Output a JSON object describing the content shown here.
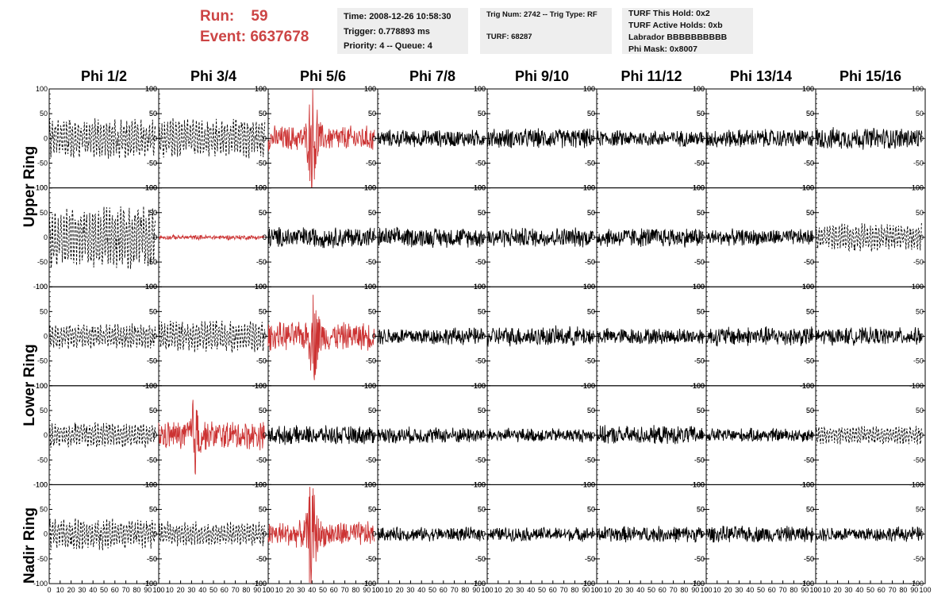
{
  "header": {
    "run_label": "Run:",
    "run_value": "59",
    "event_label": "Event:",
    "event_value": "6637678"
  },
  "info": {
    "time": "Time: 2008-12-26 10:58:30",
    "trigger": "Trigger: 0.778893 ms",
    "priority": "Priority: 4 -- Queue: 4",
    "trig_num": "Trig Num: 2742 -- Trig Type: RF",
    "turf": "TURF: 68287",
    "turf_this_hold": "TURF This Hold: 0x2",
    "turf_active_holds": "TURF Active Holds: 0xb",
    "labrador": "Labrador BBBBBBBBBB",
    "phi_mask": "Phi Mask: 0x8007"
  },
  "colors": {
    "highlight": "#cc3333",
    "normal": "#000000",
    "header_text": "#cc4444",
    "info_bg": "#eeeeee"
  },
  "chart_data": {
    "type": "line",
    "columns": [
      "Phi 1/2",
      "Phi 3/4",
      "Phi 5/6",
      "Phi 7/8",
      "Phi 9/10",
      "Phi 11/12",
      "Phi 13/14",
      "Phi 15/16"
    ],
    "ring_labels": [
      "Upper Ring",
      "Lower Ring",
      "Nadir Ring"
    ],
    "xlim": [
      0,
      100
    ],
    "ylim": [
      -100,
      100
    ],
    "x_ticks": [
      0,
      10,
      20,
      30,
      40,
      50,
      60,
      70,
      80,
      90,
      100
    ],
    "y_ticks": [
      -100,
      -50,
      0,
      50,
      100
    ],
    "rows": [
      {
        "ring": "Upper Ring",
        "panels": [
          {
            "style": "dashed",
            "color": "normal",
            "amp": 35,
            "burst": 0
          },
          {
            "style": "dashed",
            "color": "normal",
            "amp": 35,
            "burst": 0
          },
          {
            "style": "solid",
            "color": "highlight",
            "amp": 22,
            "burst": 90,
            "burst_center": 41
          },
          {
            "style": "solid",
            "color": "normal",
            "amp": 15,
            "burst": 0
          },
          {
            "style": "solid",
            "color": "normal",
            "amp": 17,
            "burst": 0
          },
          {
            "style": "solid",
            "color": "normal",
            "amp": 14,
            "burst": 0
          },
          {
            "style": "solid",
            "color": "normal",
            "amp": 16,
            "burst": 0
          },
          {
            "style": "solid",
            "color": "normal",
            "amp": 19,
            "burst": 0
          }
        ]
      },
      {
        "ring": "Upper Ring",
        "panels": [
          {
            "style": "dashed",
            "color": "normal",
            "amp": 55,
            "burst": 0
          },
          {
            "style": "solid",
            "color": "highlight",
            "amp": 4,
            "burst": 0
          },
          {
            "style": "solid",
            "color": "normal",
            "amp": 18,
            "burst": 0
          },
          {
            "style": "solid",
            "color": "normal",
            "amp": 17,
            "burst": 0
          },
          {
            "style": "solid",
            "color": "normal",
            "amp": 17,
            "burst": 0
          },
          {
            "style": "solid",
            "color": "normal",
            "amp": 17,
            "burst": 0
          },
          {
            "style": "solid",
            "color": "normal",
            "amp": 14,
            "burst": 0
          },
          {
            "style": "dashed",
            "color": "normal",
            "amp": 24,
            "burst": 0
          }
        ]
      },
      {
        "ring": "Lower Ring",
        "panels": [
          {
            "style": "dashed",
            "color": "normal",
            "amp": 22,
            "burst": 0
          },
          {
            "style": "dashed",
            "color": "normal",
            "amp": 28,
            "burst": 0
          },
          {
            "style": "solid",
            "color": "highlight",
            "amp": 24,
            "burst": 60,
            "burst_center": 42
          },
          {
            "style": "solid",
            "color": "normal",
            "amp": 15,
            "burst": 0
          },
          {
            "style": "solid",
            "color": "normal",
            "amp": 17,
            "burst": 0
          },
          {
            "style": "solid",
            "color": "normal",
            "amp": 14,
            "burst": 0
          },
          {
            "style": "solid",
            "color": "normal",
            "amp": 17,
            "burst": 0
          },
          {
            "style": "solid",
            "color": "normal",
            "amp": 15,
            "burst": 0
          }
        ]
      },
      {
        "ring": "Lower Ring",
        "panels": [
          {
            "style": "dashed",
            "color": "normal",
            "amp": 22,
            "burst": 0
          },
          {
            "style": "solid",
            "color": "highlight",
            "amp": 25,
            "burst": 60,
            "burst_center": 33
          },
          {
            "style": "solid",
            "color": "normal",
            "amp": 16,
            "burst": 0
          },
          {
            "style": "solid",
            "color": "normal",
            "amp": 14,
            "burst": 0
          },
          {
            "style": "solid",
            "color": "normal",
            "amp": 12,
            "burst": 0
          },
          {
            "style": "solid",
            "color": "normal",
            "amp": 16,
            "burst": 0
          },
          {
            "style": "solid",
            "color": "normal",
            "amp": 12,
            "burst": 0
          },
          {
            "style": "dashed",
            "color": "normal",
            "amp": 16,
            "burst": 0
          }
        ]
      },
      {
        "ring": "Nadir Ring",
        "panels": [
          {
            "style": "dashed",
            "color": "normal",
            "amp": 28,
            "burst": 0
          },
          {
            "style": "dashed",
            "color": "normal",
            "amp": 22,
            "burst": 0
          },
          {
            "style": "solid",
            "color": "highlight",
            "amp": 22,
            "burst": 80,
            "burst_center": 40
          },
          {
            "style": "solid",
            "color": "normal",
            "amp": 12,
            "burst": 0
          },
          {
            "style": "solid",
            "color": "normal",
            "amp": 12,
            "burst": 0
          },
          {
            "style": "solid",
            "color": "normal",
            "amp": 14,
            "burst": 0
          },
          {
            "style": "solid",
            "color": "normal",
            "amp": 14,
            "burst": 0
          },
          {
            "style": "solid",
            "color": "normal",
            "amp": 13,
            "burst": 0
          }
        ]
      }
    ]
  }
}
